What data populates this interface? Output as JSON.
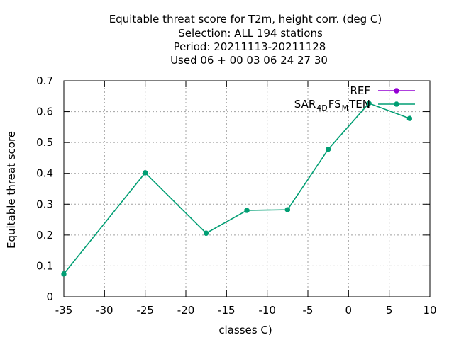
{
  "chart_data": {
    "type": "line",
    "title_lines": [
      "Equitable threat score  for T2m, height corr. (deg C)",
      "Selection: ALL    194 stations",
      "Period: 20211113-20211128",
      "Used  06 + 00 03 06 24 27 30"
    ],
    "xlabel": "classes C)",
    "ylabel": "Equitable threat score",
    "xlim": [
      -35,
      10
    ],
    "ylim": [
      0,
      0.7
    ],
    "xticks": [
      "-35",
      "-30",
      "-25",
      "-20",
      "-15",
      "-10",
      "-5",
      "0",
      "5",
      "10"
    ],
    "yticks": [
      "0",
      "0.1",
      "0.2",
      "0.3",
      "0.4",
      "0.5",
      "0.6",
      "0.7"
    ],
    "grid": true,
    "legend_position": "top-right",
    "series": [
      {
        "name": "REF",
        "color": "#9400d3",
        "x": [],
        "y": []
      },
      {
        "name_parts": [
          "SAR",
          "4D",
          "FS",
          "M",
          "TEN"
        ],
        "color": "#009e73",
        "x": [
          -35,
          -25,
          -17.5,
          -12.5,
          -7.5,
          -2.5,
          2.5,
          7.5
        ],
        "y": [
          0.074,
          0.402,
          0.206,
          0.28,
          0.282,
          0.478,
          0.627,
          0.578
        ]
      }
    ]
  }
}
